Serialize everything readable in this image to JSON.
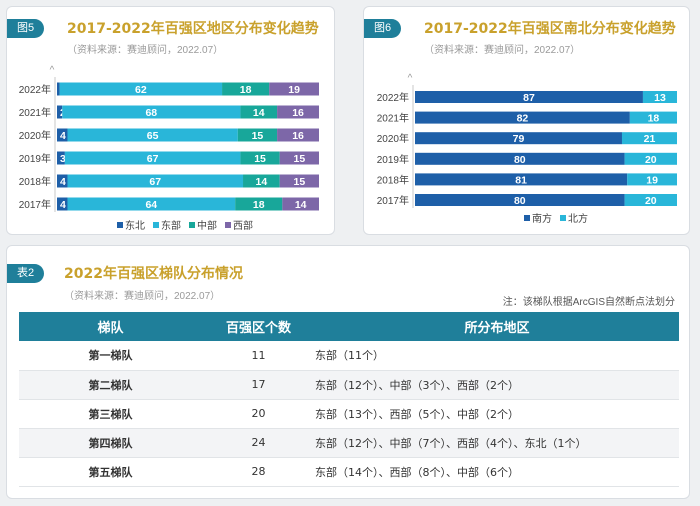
{
  "colors": {
    "dongbei": "#1e5fa8",
    "dongbu": "#29b6d9",
    "zhongbu": "#18a79a",
    "xibu": "#7d67a8",
    "nan": "#1e5fa8",
    "bei": "#29b6d9",
    "header": "#1f7f9a",
    "title": "#c9a12c"
  },
  "fig5": {
    "badge": "图5",
    "title": "2017-2022年百强区地区分布变化趋势",
    "source": "（资料来源：赛迪顾问，2022.07）"
  },
  "fig6": {
    "badge": "图6",
    "title": "2017-2022年百强区南北分布变化趋势",
    "source": "（资料来源：赛迪顾问，2022.07）"
  },
  "table2": {
    "badge": "表2",
    "title": "2022年百强区梯队分布情况",
    "source": "（资料来源：赛迪顾问，2022.07）",
    "note": "注：该梯队根据ArcGIS自然断点法划分",
    "headers": [
      "梯队",
      "百强区个数",
      "所分布地区"
    ],
    "rows": [
      {
        "tier": "第一梯队",
        "count": "11",
        "regions": "东部（11个）"
      },
      {
        "tier": "第二梯队",
        "count": "17",
        "regions": "东部（12个）、中部（3个）、西部（2个）"
      },
      {
        "tier": "第三梯队",
        "count": "20",
        "regions": "东部（13个）、西部（5个）、中部（2个）"
      },
      {
        "tier": "第四梯队",
        "count": "24",
        "regions": "东部（12个）、中部（7个）、西部（4个）、东北（1个）"
      },
      {
        "tier": "第五梯队",
        "count": "28",
        "regions": "东部（14个）、西部（8个）、中部（6个）"
      }
    ]
  },
  "chart_data": [
    {
      "type": "bar",
      "orientation": "horizontal",
      "stacked": true,
      "categories": [
        "2022年",
        "2021年",
        "2020年",
        "2019年",
        "2018年",
        "2017年"
      ],
      "series": [
        {
          "name": "东北",
          "values": [
            1,
            2,
            4,
            3,
            4,
            4
          ]
        },
        {
          "name": "东部",
          "values": [
            62,
            68,
            65,
            67,
            67,
            64
          ]
        },
        {
          "name": "中部",
          "values": [
            18,
            14,
            15,
            15,
            14,
            18
          ]
        },
        {
          "name": "西部",
          "values": [
            19,
            16,
            16,
            15,
            15,
            14
          ]
        }
      ],
      "xlim": [
        0,
        100
      ],
      "legend": "bottom"
    },
    {
      "type": "bar",
      "orientation": "horizontal",
      "stacked": true,
      "categories": [
        "2022年",
        "2021年",
        "2020年",
        "2019年",
        "2018年",
        "2017年"
      ],
      "series": [
        {
          "name": "南方",
          "values": [
            87,
            82,
            79,
            80,
            81,
            80
          ]
        },
        {
          "name": "北方",
          "values": [
            13,
            18,
            21,
            20,
            19,
            20
          ]
        }
      ],
      "xlim": [
        0,
        100
      ],
      "legend": "bottom"
    }
  ]
}
